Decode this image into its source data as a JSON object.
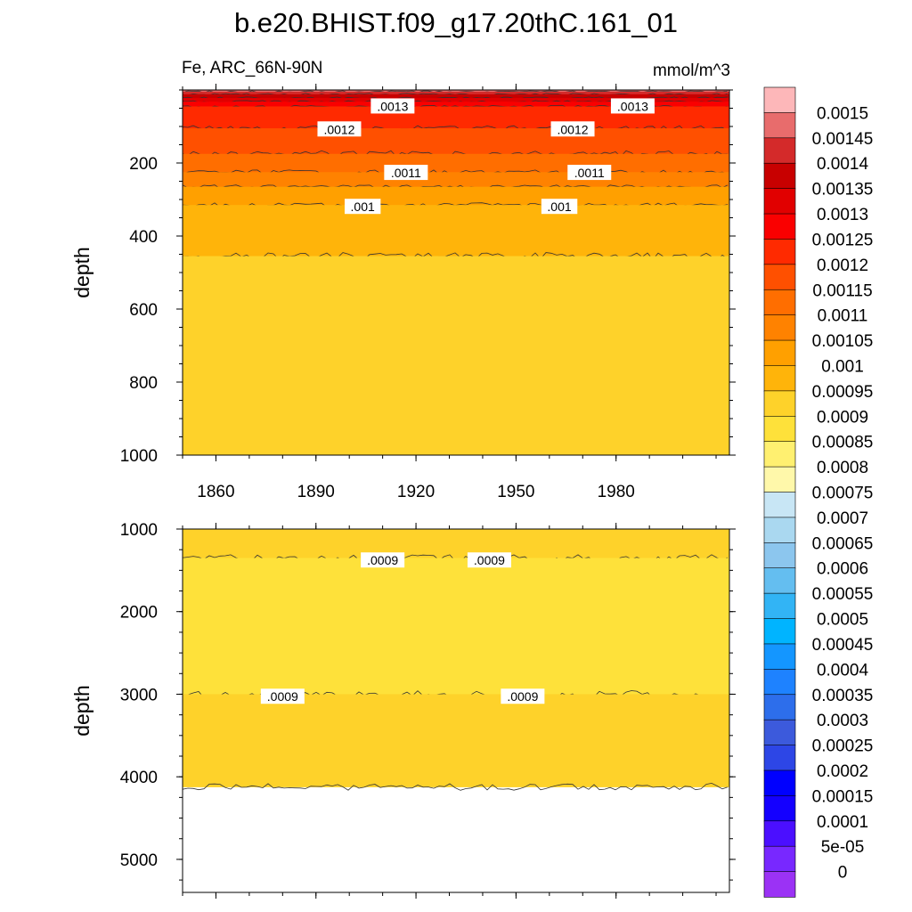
{
  "title": "b.e20.BHIST.f09_g17.20thC.161_01",
  "subtitle_left": "Fe, ARC_66N-90N",
  "subtitle_right": "mmol/m^3",
  "chart_data": [
    {
      "type": "heatmap",
      "panel": "top",
      "ylabel": "depth",
      "xlim": [
        1850,
        2014
      ],
      "ylim": [
        0,
        1000
      ],
      "y_reversed": true,
      "x_ticks": [
        "1860",
        "1890",
        "1920",
        "1950",
        "1980"
      ],
      "y_ticks": [
        "200",
        "400",
        "600",
        "800",
        "1000"
      ],
      "bands": [
        {
          "top": 0,
          "bottom": 5,
          "level": 0.0015
        },
        {
          "top": 5,
          "bottom": 12,
          "level": 0.00145
        },
        {
          "top": 12,
          "bottom": 22,
          "level": 0.0014
        },
        {
          "top": 22,
          "bottom": 32,
          "level": 0.00135
        },
        {
          "top": 32,
          "bottom": 45,
          "level": 0.0013
        },
        {
          "top": 45,
          "bottom": 105,
          "level": 0.00125
        },
        {
          "top": 105,
          "bottom": 175,
          "level": 0.0012
        },
        {
          "top": 175,
          "bottom": 225,
          "level": 0.00115
        },
        {
          "top": 225,
          "bottom": 265,
          "level": 0.0011
        },
        {
          "top": 265,
          "bottom": 315,
          "level": 0.00105
        },
        {
          "top": 315,
          "bottom": 455,
          "level": 0.001
        },
        {
          "top": 455,
          "bottom": 1000,
          "level": 0.00095
        }
      ],
      "contour_labels": [
        {
          "x": 1913,
          "y": 45,
          "text": ".0013"
        },
        {
          "x": 1985,
          "y": 45,
          "text": ".0013"
        },
        {
          "x": 1897,
          "y": 108,
          "text": ".0012"
        },
        {
          "x": 1967,
          "y": 108,
          "text": ".0012"
        },
        {
          "x": 1917,
          "y": 227,
          "text": ".0011"
        },
        {
          "x": 1972,
          "y": 227,
          "text": ".0011"
        },
        {
          "x": 1904,
          "y": 320,
          "text": ".001"
        },
        {
          "x": 1963,
          "y": 320,
          "text": ".001"
        }
      ]
    },
    {
      "type": "heatmap",
      "panel": "bottom",
      "ylabel": "depth",
      "xlim": [
        1850,
        2014
      ],
      "ylim": [
        1000,
        5400
      ],
      "y_reversed": true,
      "data_bottom": 4120,
      "y_ticks": [
        "1000",
        "2000",
        "3000",
        "4000",
        "5000"
      ],
      "bands": [
        {
          "top": 1000,
          "bottom": 1350,
          "level": 0.00095
        },
        {
          "top": 1350,
          "bottom": 3000,
          "level": 0.0009
        },
        {
          "top": 3000,
          "bottom": 4120,
          "level": 0.00095
        }
      ],
      "contour_labels": [
        {
          "x": 1910,
          "y": 1380,
          "text": ".0009"
        },
        {
          "x": 1942,
          "y": 1380,
          "text": ".0009"
        },
        {
          "x": 1880,
          "y": 3030,
          "text": ".0009"
        },
        {
          "x": 1952,
          "y": 3030,
          "text": ".0009"
        }
      ]
    }
  ],
  "colorbar": {
    "labels": [
      "0.0015",
      "0.00145",
      "0.0014",
      "0.00135",
      "0.0013",
      "0.00125",
      "0.0012",
      "0.00115",
      "0.0011",
      "0.00105",
      "0.001",
      "0.00095",
      "0.0009",
      "0.00085",
      "0.0008",
      "0.00075",
      "0.0007",
      "0.00065",
      "0.0006",
      "0.00055",
      "0.0005",
      "0.00045",
      "0.0004",
      "0.00035",
      "0.0003",
      "0.00025",
      "0.0002",
      "0.00015",
      "0.0001",
      "5e-05",
      "0"
    ],
    "colors": [
      "#fdb7b9",
      "#e86c6c",
      "#d42a2a",
      "#c80000",
      "#e10000",
      "#fa0000",
      "#ff2a00",
      "#ff5000",
      "#ff6e00",
      "#ff8200",
      "#ffa000",
      "#ffb40a",
      "#fed22a",
      "#fee13a",
      "#fff070",
      "#fff8aa",
      "#c8e6f5",
      "#aad8f0",
      "#8cc6ee",
      "#64bef0",
      "#32b4f5",
      "#00b4ff",
      "#1496ff",
      "#1e82ff",
      "#2d6eeb",
      "#3c5adc",
      "#2d46e6",
      "#0000ff",
      "#1400ff",
      "#4b0fff",
      "#7828ff",
      "#9b32f5"
    ]
  }
}
